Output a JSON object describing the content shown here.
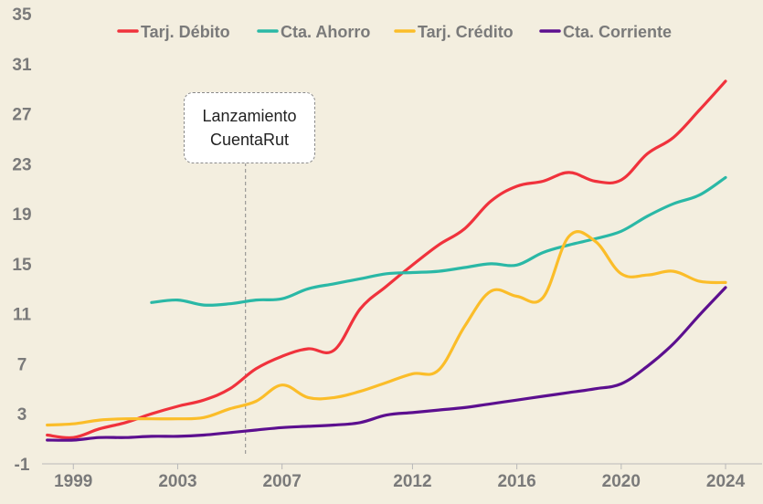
{
  "chart_data": {
    "type": "line",
    "ylim": [
      -1,
      35
    ],
    "yticks": [
      -1,
      3,
      7,
      11,
      15,
      19,
      23,
      27,
      31,
      35
    ],
    "xlim": [
      1997.8,
      2025.4
    ],
    "xticks": [
      1999,
      2003,
      2007,
      2012,
      2016,
      2020,
      2024
    ],
    "legend_position": "top",
    "series": [
      {
        "name": "Tarj. Débito",
        "color": "#f0323c",
        "points": [
          [
            1998,
            1.3
          ],
          [
            1999,
            1.1
          ],
          [
            2000,
            1.8
          ],
          [
            2001,
            2.3
          ],
          [
            2002,
            3.0
          ],
          [
            2003,
            3.6
          ],
          [
            2004,
            4.1
          ],
          [
            2005,
            5.0
          ],
          [
            2006,
            6.6
          ],
          [
            2007,
            7.6
          ],
          [
            2008,
            8.2
          ],
          [
            2009,
            8.1
          ],
          [
            2010,
            11.4
          ],
          [
            2011,
            13.2
          ],
          [
            2012,
            14.9
          ],
          [
            2013,
            16.5
          ],
          [
            2014,
            17.8
          ],
          [
            2015,
            20.0
          ],
          [
            2016,
            21.2
          ],
          [
            2017,
            21.6
          ],
          [
            2018,
            22.3
          ],
          [
            2019,
            21.6
          ],
          [
            2020,
            21.7
          ],
          [
            2021,
            23.8
          ],
          [
            2022,
            25.1
          ],
          [
            2023,
            27.3
          ],
          [
            2024,
            29.6
          ]
        ]
      },
      {
        "name": "Cta. Ahorro",
        "color": "#2ab8a6",
        "points": [
          [
            2002,
            11.9
          ],
          [
            2003,
            12.1
          ],
          [
            2004,
            11.7
          ],
          [
            2005,
            11.8
          ],
          [
            2006,
            12.1
          ],
          [
            2007,
            12.2
          ],
          [
            2008,
            13.0
          ],
          [
            2009,
            13.4
          ],
          [
            2010,
            13.8
          ],
          [
            2011,
            14.2
          ],
          [
            2012,
            14.3
          ],
          [
            2013,
            14.4
          ],
          [
            2014,
            14.7
          ],
          [
            2015,
            15.0
          ],
          [
            2016,
            14.9
          ],
          [
            2017,
            15.9
          ],
          [
            2018,
            16.5
          ],
          [
            2019,
            17.0
          ],
          [
            2020,
            17.6
          ],
          [
            2021,
            18.8
          ],
          [
            2022,
            19.8
          ],
          [
            2023,
            20.5
          ],
          [
            2024,
            21.9
          ]
        ]
      },
      {
        "name": "Tarj. Crédito",
        "color": "#fbbd29",
        "points": [
          [
            1998,
            2.1
          ],
          [
            1999,
            2.2
          ],
          [
            2000,
            2.5
          ],
          [
            2001,
            2.6
          ],
          [
            2002,
            2.6
          ],
          [
            2003,
            2.6
          ],
          [
            2004,
            2.7
          ],
          [
            2005,
            3.4
          ],
          [
            2006,
            4.0
          ],
          [
            2007,
            5.3
          ],
          [
            2008,
            4.3
          ],
          [
            2009,
            4.3
          ],
          [
            2010,
            4.8
          ],
          [
            2011,
            5.5
          ],
          [
            2012,
            6.2
          ],
          [
            2013,
            6.5
          ],
          [
            2014,
            10.0
          ],
          [
            2015,
            12.8
          ],
          [
            2016,
            12.4
          ],
          [
            2017,
            12.3
          ],
          [
            2018,
            17.2
          ],
          [
            2019,
            16.8
          ],
          [
            2020,
            14.2
          ],
          [
            2021,
            14.1
          ],
          [
            2022,
            14.4
          ],
          [
            2023,
            13.6
          ],
          [
            2024,
            13.5
          ]
        ]
      },
      {
        "name": "Cta. Corriente",
        "color": "#5c0f8f",
        "points": [
          [
            1998,
            0.9
          ],
          [
            1999,
            0.9
          ],
          [
            2000,
            1.1
          ],
          [
            2001,
            1.1
          ],
          [
            2002,
            1.2
          ],
          [
            2003,
            1.2
          ],
          [
            2004,
            1.3
          ],
          [
            2005,
            1.5
          ],
          [
            2006,
            1.7
          ],
          [
            2007,
            1.9
          ],
          [
            2008,
            2.0
          ],
          [
            2009,
            2.1
          ],
          [
            2010,
            2.3
          ],
          [
            2011,
            2.9
          ],
          [
            2012,
            3.1
          ],
          [
            2013,
            3.3
          ],
          [
            2014,
            3.5
          ],
          [
            2015,
            3.8
          ],
          [
            2016,
            4.1
          ],
          [
            2017,
            4.4
          ],
          [
            2018,
            4.7
          ],
          [
            2019,
            5.0
          ],
          [
            2020,
            5.4
          ],
          [
            2021,
            6.8
          ],
          [
            2022,
            8.6
          ],
          [
            2023,
            10.9
          ],
          [
            2024,
            13.1
          ]
        ]
      }
    ],
    "annotation": {
      "lines": [
        "Lanzamiento",
        "CuentaRut"
      ],
      "x": 2005.6
    }
  }
}
